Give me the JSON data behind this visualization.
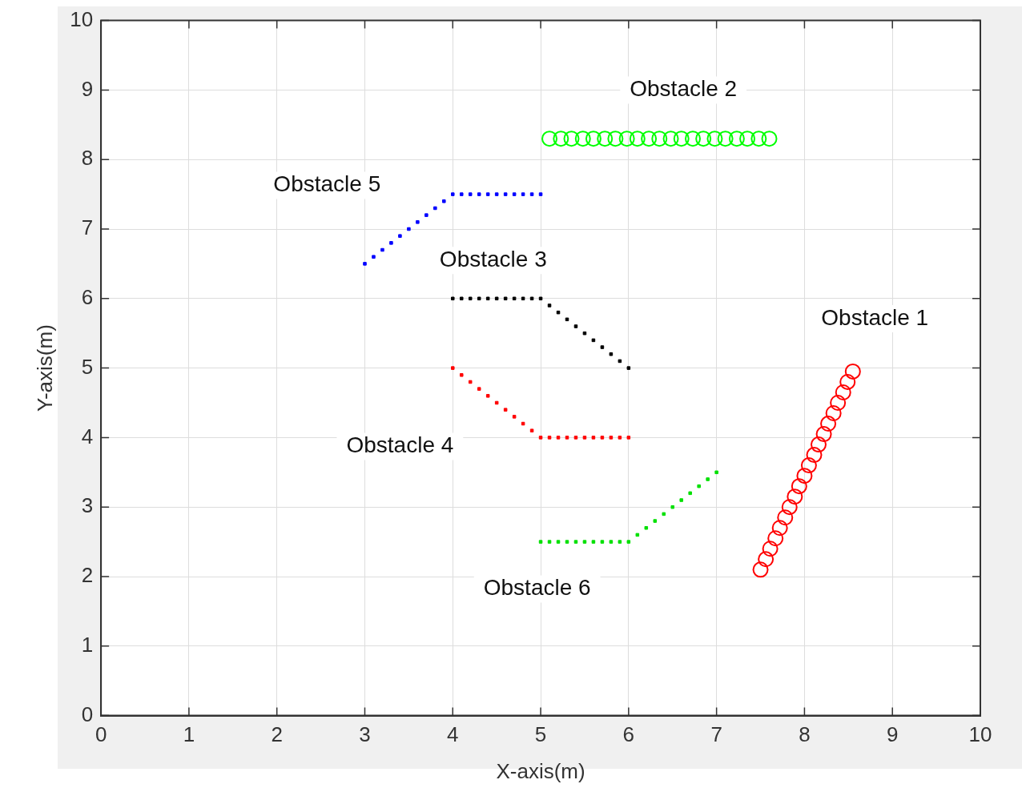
{
  "chart_data": {
    "type": "scatter",
    "xlabel": "X-axis(m)",
    "ylabel": "Y-axis(m)",
    "xlim": [
      0,
      10
    ],
    "ylim": [
      0,
      10
    ],
    "xticks": [
      0,
      1,
      2,
      3,
      4,
      5,
      6,
      7,
      8,
      9,
      10
    ],
    "yticks": [
      0,
      1,
      2,
      3,
      4,
      5,
      6,
      7,
      8,
      9,
      10
    ],
    "grid": true,
    "legend": false,
    "series": [
      {
        "name": "Obstacle 1",
        "color": "#ff0000",
        "marker": "circle",
        "x": [
          7.5,
          7.56,
          7.61,
          7.67,
          7.72,
          7.78,
          7.83,
          7.89,
          7.94,
          8.0,
          8.05,
          8.11,
          8.16,
          8.22,
          8.27,
          8.33,
          8.38,
          8.44,
          8.49,
          8.55
        ],
        "values": [
          2.1,
          2.25,
          2.4,
          2.55,
          2.7,
          2.85,
          3.0,
          3.15,
          3.3,
          3.45,
          3.6,
          3.75,
          3.9,
          4.05,
          4.2,
          4.35,
          4.5,
          4.65,
          4.8,
          4.95
        ]
      },
      {
        "name": "Obstacle 2",
        "color": "#00ff00",
        "marker": "circle",
        "x": [
          5.1,
          5.23,
          5.35,
          5.48,
          5.6,
          5.73,
          5.85,
          5.98,
          6.1,
          6.23,
          6.35,
          6.48,
          6.6,
          6.73,
          6.85,
          6.98,
          7.1,
          7.23,
          7.35,
          7.48,
          7.6
        ],
        "values": [
          8.3,
          8.3,
          8.3,
          8.3,
          8.3,
          8.3,
          8.3,
          8.3,
          8.3,
          8.3,
          8.3,
          8.3,
          8.3,
          8.3,
          8.3,
          8.3,
          8.3,
          8.3,
          8.3,
          8.3,
          8.3
        ]
      },
      {
        "name": "Obstacle 3",
        "color": "#000000",
        "marker": "square",
        "x": [
          4.0,
          4.1,
          4.2,
          4.3,
          4.4,
          4.5,
          4.6,
          4.7,
          4.8,
          4.9,
          5.0,
          5.1,
          5.2,
          5.3,
          5.4,
          5.5,
          5.6,
          5.7,
          5.8,
          5.9,
          6.0
        ],
        "values": [
          6,
          6,
          6,
          6,
          6,
          6,
          6,
          6,
          6,
          6,
          6,
          5.9,
          5.8,
          5.7,
          5.6,
          5.5,
          5.4,
          5.3,
          5.2,
          5.1,
          5.0
        ]
      },
      {
        "name": "Obstacle 4",
        "color": "#ff0000",
        "marker": "square",
        "x": [
          4.0,
          4.1,
          4.2,
          4.3,
          4.4,
          4.5,
          4.6,
          4.7,
          4.8,
          4.9,
          5.0,
          5.1,
          5.2,
          5.3,
          5.4,
          5.5,
          5.6,
          5.7,
          5.8,
          5.9,
          6.0
        ],
        "values": [
          5.0,
          4.9,
          4.8,
          4.7,
          4.6,
          4.5,
          4.4,
          4.3,
          4.2,
          4.1,
          4,
          4,
          4,
          4,
          4,
          4,
          4,
          4,
          4,
          4,
          4
        ]
      },
      {
        "name": "Obstacle 5",
        "color": "#0000ff",
        "marker": "square",
        "x": [
          3.0,
          3.1,
          3.2,
          3.3,
          3.4,
          3.5,
          3.6,
          3.7,
          3.8,
          3.9,
          4.0,
          4.1,
          4.2,
          4.3,
          4.4,
          4.5,
          4.6,
          4.7,
          4.8,
          4.9,
          5.0
        ],
        "values": [
          6.5,
          6.6,
          6.7,
          6.8,
          6.9,
          7.0,
          7.1,
          7.2,
          7.3,
          7.4,
          7.5,
          7.5,
          7.5,
          7.5,
          7.5,
          7.5,
          7.5,
          7.5,
          7.5,
          7.5,
          7.5
        ]
      },
      {
        "name": "Obstacle 6",
        "color": "#00e000",
        "marker": "square",
        "x": [
          5.0,
          5.1,
          5.2,
          5.3,
          5.4,
          5.5,
          5.6,
          5.7,
          5.8,
          5.9,
          6.0,
          6.1,
          6.2,
          6.3,
          6.4,
          6.5,
          6.6,
          6.7,
          6.8,
          6.9,
          7.0
        ],
        "values": [
          2.5,
          2.5,
          2.5,
          2.5,
          2.5,
          2.5,
          2.5,
          2.5,
          2.5,
          2.5,
          2.5,
          2.6,
          2.7,
          2.8,
          2.9,
          3.0,
          3.1,
          3.2,
          3.3,
          3.4,
          3.5
        ]
      }
    ]
  }
}
